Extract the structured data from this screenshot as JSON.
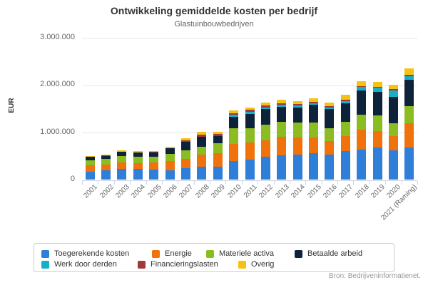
{
  "title": "Ontwikkeling gemiddelde kosten per bedrijf",
  "subtitle": "Glastuinbouwbedrijven",
  "y_axis": {
    "label": "EUR",
    "ticks": [
      "3.000.000",
      "2.000.000",
      "1.000.000",
      "0"
    ]
  },
  "source": "Bron: Bedrijveninformatienet.",
  "colors": {
    "gridline": "#e6e6e6",
    "axis": "#ccd6eb",
    "title_text": "#333333",
    "muted_text": "#666666",
    "source_text": "#999999",
    "legend_border": "#cccccc"
  },
  "chart_data": {
    "type": "bar",
    "stacked": true,
    "title": "Ontwikkeling gemiddelde kosten per bedrijf",
    "subtitle": "Glastuinbouwbedrijven",
    "xlabel": "",
    "ylabel": "EUR",
    "ylim": [
      0,
      3000000
    ],
    "grid": true,
    "legend_position": "bottom",
    "categories": [
      "2001",
      "2002",
      "2003",
      "2004",
      "2005",
      "2006",
      "2007",
      "2008",
      "2009",
      "2010",
      "2011",
      "2012",
      "2013",
      "2014",
      "2015",
      "2016",
      "2017",
      "2018",
      "2019",
      "2020",
      "2021 (Raming)"
    ],
    "series": [
      {
        "name": "Toegerekende kosten",
        "color": "#2f7ed8",
        "values": [
          165000,
          190000,
          225000,
          225000,
          215000,
          200000,
          235000,
          265000,
          275000,
          390000,
          425000,
          475000,
          510000,
          525000,
          550000,
          525000,
          600000,
          635000,
          670000,
          620000,
          675000
        ]
      },
      {
        "name": "Energie",
        "color": "#ef720d",
        "values": [
          135000,
          125000,
          135000,
          125000,
          150000,
          185000,
          200000,
          255000,
          275000,
          360000,
          350000,
          355000,
          395000,
          355000,
          340000,
          285000,
          320000,
          410000,
          345000,
          290000,
          510000
        ]
      },
      {
        "name": "Materiele activa",
        "color": "#8bbc21",
        "values": [
          105000,
          115000,
          140000,
          135000,
          115000,
          150000,
          175000,
          165000,
          215000,
          325000,
          305000,
          320000,
          310000,
          320000,
          305000,
          275000,
          300000,
          320000,
          335000,
          275000,
          360000
        ]
      },
      {
        "name": "Betaalde arbeid",
        "color": "#0d233a",
        "values": [
          70000,
          65000,
          85000,
          85000,
          85000,
          130000,
          185000,
          215000,
          145000,
          250000,
          305000,
          330000,
          315000,
          310000,
          380000,
          395000,
          390000,
          505000,
          495000,
          560000,
          555000
        ]
      },
      {
        "name": "Werk door derden",
        "color": "#17aec8",
        "values": [
          0,
          0,
          0,
          0,
          0,
          0,
          0,
          0,
          0,
          35000,
          40000,
          40000,
          40000,
          45000,
          35000,
          35000,
          45000,
          75000,
          90000,
          135000,
          80000
        ]
      },
      {
        "name": "Financieringslasten",
        "color": "#9e3a3a",
        "values": [
          0,
          20000,
          0,
          0,
          15000,
          0,
          25000,
          40000,
          50000,
          40000,
          40000,
          40000,
          30000,
          30000,
          30000,
          30000,
          30000,
          20000,
          20000,
          30000,
          20000
        ]
      },
      {
        "name": "Overig",
        "color": "#f5c211",
        "values": [
          25000,
          15000,
          35000,
          35000,
          25000,
          30000,
          50000,
          70000,
          50000,
          60000,
          50000,
          60000,
          80000,
          60000,
          70000,
          70000,
          100000,
          100000,
          100000,
          85000,
          135000
        ]
      }
    ]
  }
}
